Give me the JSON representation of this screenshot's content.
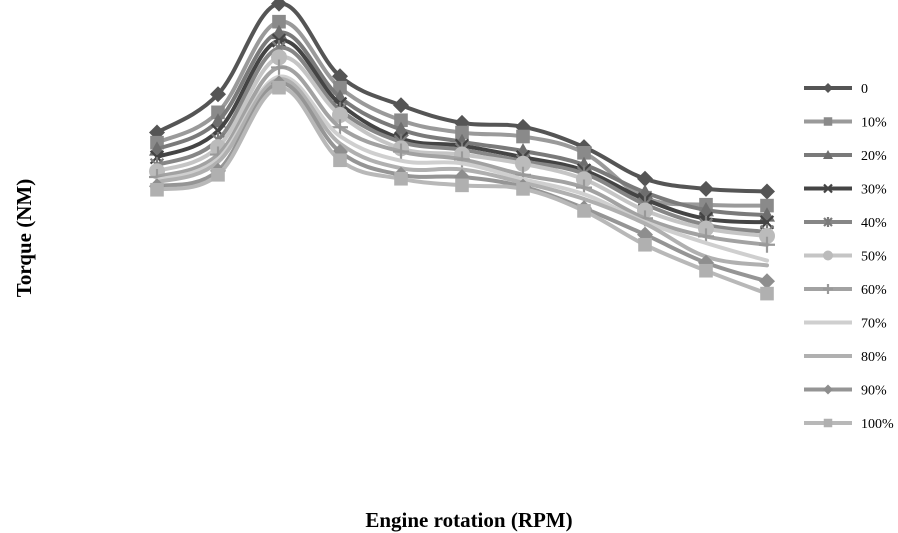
{
  "chart_data": {
    "type": "line",
    "title": "",
    "xlabel": "Engine rotation (RPM)",
    "ylabel": "Torque (NM)",
    "x": [
      1,
      2,
      3,
      4,
      5,
      6,
      7,
      8,
      9,
      10,
      11
    ],
    "ylim": [
      0,
      100
    ],
    "grid": false,
    "legend_position": "right",
    "series": [
      {
        "name": "0",
        "color": "#555555",
        "marker": "diamond",
        "line_color": "#555555",
        "values": [
          72.6,
          81.3,
          101.9,
          85.4,
          78.8,
          74.8,
          73.9,
          69.3,
          62.1,
          59.8,
          59.2
        ]
      },
      {
        "name": "10%",
        "color": "#8a8a8a",
        "marker": "square",
        "line_color": "#9a9a9a",
        "values": [
          70.3,
          77.2,
          97.8,
          82.8,
          75.4,
          72.6,
          71.7,
          68.0,
          57.8,
          56.2,
          56.0
        ]
      },
      {
        "name": "20%",
        "color": "#6e6e6e",
        "marker": "triangle",
        "line_color": "#7a7a7a",
        "values": [
          68.8,
          75.2,
          95.3,
          80.6,
          73.3,
          70.5,
          68.4,
          65.3,
          59.0,
          55.0,
          53.8
        ]
      },
      {
        "name": "30%",
        "color": "#444444",
        "marker": "x",
        "line_color": "#444444",
        "values": [
          67.0,
          73.0,
          93.5,
          79.1,
          71.2,
          69.6,
          67.0,
          64.0,
          57.4,
          53.0,
          52.2
        ]
      },
      {
        "name": "40%",
        "color": "#7b7b7b",
        "marker": "asterisk",
        "line_color": "#868686",
        "values": [
          65.2,
          70.9,
          91.8,
          77.7,
          70.5,
          68.7,
          66.1,
          63.3,
          56.3,
          51.6,
          50.0
        ]
      },
      {
        "name": "50%",
        "color": "#bbbbbb",
        "marker": "circle",
        "line_color": "#c5c5c5",
        "values": [
          63.8,
          69.3,
          89.7,
          76.6,
          69.0,
          67.6,
          65.5,
          62.0,
          54.9,
          50.8,
          49.1
        ]
      },
      {
        "name": "60%",
        "color": "#999999",
        "marker": "plus",
        "line_color": "#a2a2a2",
        "values": [
          62.5,
          67.6,
          87.4,
          73.8,
          68.3,
          66.5,
          63.0,
          60.1,
          53.1,
          49.0,
          47.1
        ]
      },
      {
        "name": "70%",
        "color": "#c2c2c2",
        "marker": "none",
        "line_color": "#cfcfcf",
        "values": [
          61.8,
          66.6,
          85.3,
          71.8,
          66.2,
          65.6,
          62.0,
          58.6,
          52.3,
          47.5,
          43.5
        ]
      },
      {
        "name": "80%",
        "color": "#a9a9a9",
        "marker": "none",
        "line_color": "#b0b0b0",
        "values": [
          61.3,
          65.9,
          84.7,
          70.1,
          64.5,
          64.2,
          61.2,
          57.5,
          51.9,
          44.4,
          42.4
        ]
      },
      {
        "name": "90%",
        "color": "#8e8e8e",
        "marker": "diamond",
        "line_color": "#959595",
        "values": [
          60.4,
          63.9,
          83.8,
          68.2,
          63.0,
          62.5,
          60.3,
          55.4,
          49.4,
          43.0,
          38.8
        ]
      },
      {
        "name": "100%",
        "color": "#b0b0b0",
        "marker": "square",
        "line_color": "#b8b8b8",
        "values": [
          59.6,
          63.0,
          82.8,
          66.3,
          62.1,
          60.6,
          59.8,
          54.8,
          47.1,
          41.2,
          36.0
        ]
      }
    ]
  }
}
